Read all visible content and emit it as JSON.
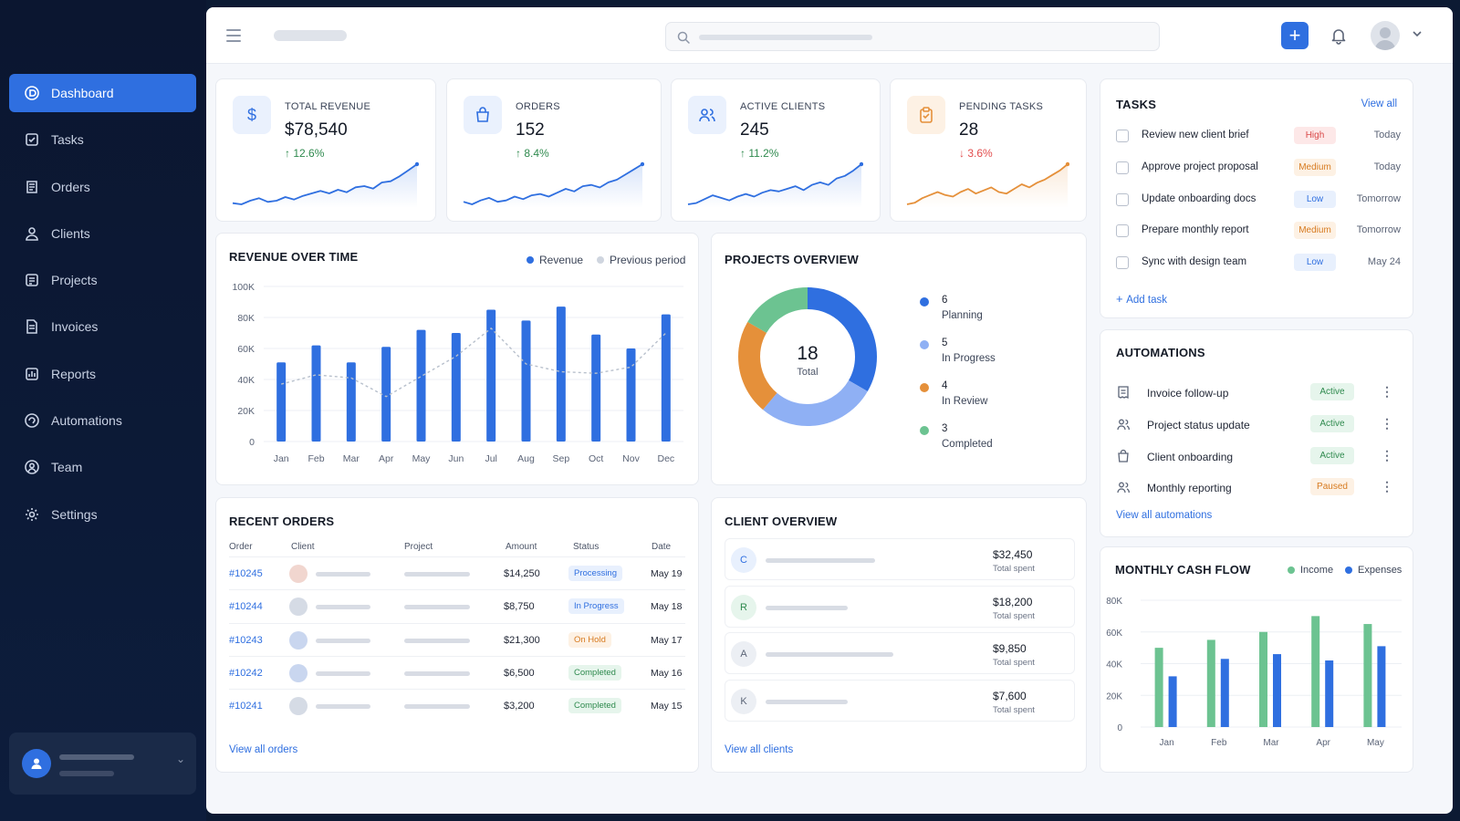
{
  "sidebar": {
    "items": [
      {
        "label": "Dashboard",
        "icon": "dashboard-icon",
        "active": true
      },
      {
        "label": "Tasks",
        "icon": "tasks-icon"
      },
      {
        "label": "Orders",
        "icon": "orders-icon"
      },
      {
        "label": "Clients",
        "icon": "clients-icon"
      },
      {
        "label": "Projects",
        "icon": "projects-icon"
      },
      {
        "label": "Invoices",
        "icon": "invoices-icon"
      },
      {
        "label": "Reports",
        "icon": "reports-icon"
      },
      {
        "label": "Automations",
        "icon": "automations-icon"
      },
      {
        "label": "Team",
        "icon": "team-icon"
      },
      {
        "label": "Settings",
        "icon": "settings-icon"
      }
    ]
  },
  "colors": {
    "primary": "#2f6fe0",
    "light_blue": "#8fb0f4",
    "green": "#6cc391",
    "orange": "#e5903a",
    "red": "#e24c4c",
    "up": "#2f8a4e"
  },
  "kpis": [
    {
      "label": "TOTAL REVENUE",
      "value": "$78,540",
      "change": "12.6%",
      "trend": "up",
      "icon": "dollar-icon",
      "spark": [
        16,
        15,
        18,
        20,
        17,
        18,
        21,
        19,
        22,
        24,
        26,
        24,
        27,
        25,
        29,
        30,
        28,
        33,
        34,
        38,
        43,
        48
      ]
    },
    {
      "label": "ORDERS",
      "value": "152",
      "change": "8.4%",
      "trend": "up",
      "icon": "shopping-bag-icon",
      "spark": [
        16,
        14,
        17,
        19,
        16,
        17,
        20,
        18,
        21,
        22,
        20,
        23,
        26,
        24,
        28,
        29,
        27,
        31,
        33,
        37,
        41,
        45
      ]
    },
    {
      "label": "ACTIVE CLIENTS",
      "value": "245",
      "change": "11.2%",
      "trend": "up",
      "icon": "users-icon",
      "spark": [
        14,
        15,
        18,
        21,
        19,
        17,
        20,
        22,
        20,
        23,
        25,
        24,
        26,
        28,
        25,
        29,
        31,
        29,
        34,
        36,
        40,
        45
      ]
    },
    {
      "label": "PENDING TASKS",
      "value": "28",
      "change": "3.6%",
      "trend": "down",
      "icon": "clipboard-icon",
      "spark": [
        16,
        17,
        20,
        22,
        24,
        22,
        21,
        24,
        26,
        23,
        25,
        27,
        24,
        23,
        26,
        29,
        27,
        30,
        32,
        35,
        38,
        42
      ]
    }
  ],
  "revenue_chart": {
    "title": "REVENUE OVER TIME",
    "legend": [
      "Revenue",
      "Previous period"
    ]
  },
  "projects": {
    "title": "PROJECTS OVERVIEW",
    "total": "18",
    "total_label": "Total",
    "segments": [
      {
        "count": "6",
        "label": "Planning",
        "color": "#2f6fe0"
      },
      {
        "count": "5",
        "label": "In Progress",
        "color": "#8fb0f4"
      },
      {
        "count": "4",
        "label": "In Review",
        "color": "#e5903a"
      },
      {
        "count": "3",
        "label": "Completed",
        "color": "#6cc391"
      }
    ]
  },
  "orders": {
    "title": "RECENT ORDERS",
    "headers": [
      "Order",
      "Client",
      "Project",
      "Amount",
      "Status",
      "Date"
    ],
    "rows": [
      {
        "id": "#10245",
        "amount": "$14,250",
        "status": "Processing",
        "date": "May 19",
        "tone": "blue"
      },
      {
        "id": "#10244",
        "amount": "$8,750",
        "status": "In Progress",
        "date": "May 18",
        "tone": "blue"
      },
      {
        "id": "#10243",
        "amount": "$21,300",
        "status": "On Hold",
        "date": "May 17",
        "tone": "orange"
      },
      {
        "id": "#10242",
        "amount": "$6,500",
        "status": "Completed",
        "date": "May 16",
        "tone": "green"
      },
      {
        "id": "#10241",
        "amount": "$3,200",
        "status": "Completed",
        "date": "May 15",
        "tone": "green"
      }
    ],
    "view_all": "View all orders"
  },
  "clients": {
    "title": "CLIENT OVERVIEW",
    "rows": [
      {
        "initial": "C",
        "amount": "$32,450",
        "sub": "Total spent",
        "tone": "blue"
      },
      {
        "initial": "R",
        "amount": "$18,200",
        "sub": "Total spent",
        "tone": "green"
      },
      {
        "initial": "A",
        "amount": "$9,850",
        "sub": "Total spent",
        "tone": "gray"
      },
      {
        "initial": "K",
        "amount": "$7,600",
        "sub": "Total spent",
        "tone": "gray"
      }
    ],
    "view_all": "View all clients"
  },
  "tasks": {
    "title": "TASKS",
    "view_all": "View all",
    "items": [
      {
        "title": "Review new client brief",
        "priority": "High",
        "due": "Today"
      },
      {
        "title": "Approve project proposal",
        "priority": "Medium",
        "due": "Today"
      },
      {
        "title": "Update onboarding docs",
        "priority": "Low",
        "due": "Tomorrow"
      },
      {
        "title": "Prepare monthly report",
        "priority": "Medium",
        "due": "Tomorrow"
      },
      {
        "title": "Sync with design team",
        "priority": "Low",
        "due": "May 24"
      }
    ],
    "add_label": "Add task"
  },
  "automations": {
    "title": "AUTOMATIONS",
    "items": [
      {
        "name": "Invoice follow-up",
        "status": "Active",
        "icon": "receipt-icon"
      },
      {
        "name": "Project status update",
        "status": "Active",
        "icon": "users-icon"
      },
      {
        "name": "Client onboarding",
        "status": "Active",
        "icon": "bag-icon"
      },
      {
        "name": "Monthly reporting",
        "status": "Paused",
        "icon": "users-icon"
      }
    ],
    "view_all": "View all automations"
  },
  "cashflow": {
    "title": "MONTHLY CASH FLOW",
    "legend": [
      "Income",
      "Expenses"
    ]
  },
  "chart_data": [
    {
      "type": "bar",
      "title": "REVENUE OVER TIME",
      "categories": [
        "Jan",
        "Feb",
        "Mar",
        "Apr",
        "May",
        "Jun",
        "Jul",
        "Aug",
        "Sep",
        "Oct",
        "Nov",
        "Dec"
      ],
      "series": [
        {
          "name": "Revenue",
          "type": "bar",
          "values": [
            51000,
            62000,
            51000,
            61000,
            72000,
            70000,
            85000,
            78000,
            87000,
            69000,
            60000,
            82000
          ]
        },
        {
          "name": "Previous period",
          "type": "line",
          "values": [
            37000,
            43000,
            41000,
            29000,
            42000,
            55000,
            73000,
            50000,
            45000,
            44000,
            48000,
            70000
          ]
        }
      ],
      "yticks": [
        "0",
        "20K",
        "40K",
        "60K",
        "80K",
        "100K"
      ],
      "ylim": [
        0,
        100000
      ]
    },
    {
      "type": "bar",
      "title": "MONTHLY CASH FLOW",
      "categories": [
        "Jan",
        "Feb",
        "Mar",
        "Apr",
        "May"
      ],
      "series": [
        {
          "name": "Income",
          "values": [
            50000,
            55000,
            60000,
            70000,
            65000
          ]
        },
        {
          "name": "Expenses",
          "values": [
            32000,
            43000,
            46000,
            42000,
            51000
          ]
        }
      ],
      "yticks": [
        "0",
        "20K",
        "40K",
        "60K",
        "80K"
      ],
      "ylim": [
        0,
        80000
      ]
    }
  ]
}
